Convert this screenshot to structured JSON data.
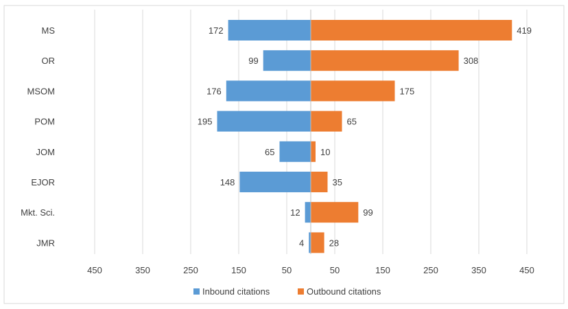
{
  "chart_data": {
    "type": "bar",
    "orientation": "horizontal-diverging",
    "categories": [
      "MS",
      "OR",
      "MSOM",
      "POM",
      "JOM",
      "EJOR",
      "Mkt. Sci.",
      "JMR"
    ],
    "series": [
      {
        "name": "Inbound citations",
        "direction": "left",
        "color": "#5b9bd5",
        "values": [
          172,
          99,
          176,
          195,
          65,
          148,
          12,
          4
        ]
      },
      {
        "name": "Outbound citations",
        "direction": "right",
        "color": "#ed7d31",
        "values": [
          419,
          308,
          175,
          65,
          10,
          35,
          99,
          28
        ]
      }
    ],
    "x_ticks": [
      "450",
      "350",
      "250",
      "150",
      "50",
      "50",
      "150",
      "250",
      "350",
      "450"
    ],
    "xlim": [
      -450,
      450
    ],
    "grid": true,
    "legend_position": "bottom",
    "title": "",
    "xlabel": "",
    "ylabel": ""
  }
}
